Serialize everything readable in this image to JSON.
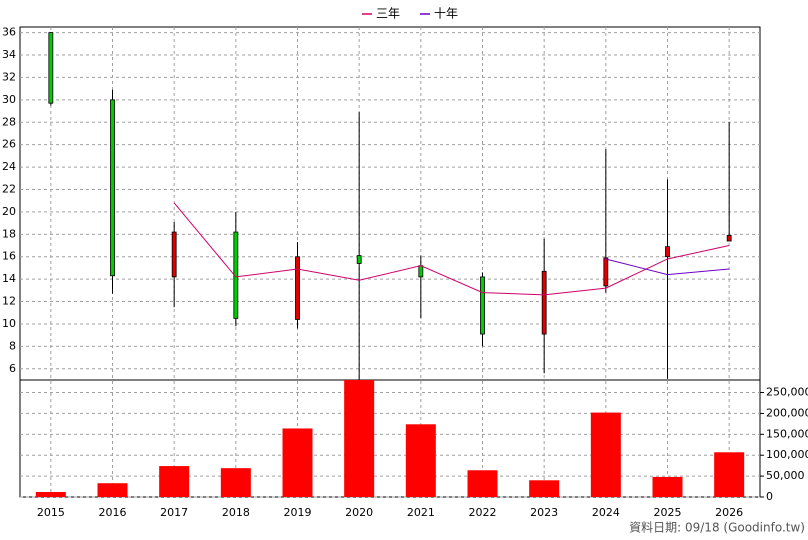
{
  "chart_data": {
    "type": "candlestick",
    "categories": [
      "2015",
      "2016",
      "2017",
      "2018",
      "2019",
      "2020",
      "2021",
      "2022",
      "2023",
      "2024",
      "2025",
      "2026"
    ],
    "open": [
      36,
      30,
      14.2,
      18.2,
      10.4,
      16.1,
      15.2,
      14.2,
      9.1,
      13.4,
      16.0,
      17.4
    ],
    "close": [
      29.7,
      14.3,
      18.2,
      10.5,
      16.0,
      15.4,
      14.2,
      9.1,
      14.7,
      15.9,
      16.9,
      17.9
    ],
    "high": [
      36,
      30.9,
      19.1,
      20.0,
      17.3,
      28.9,
      16.1,
      14.6,
      17.6,
      25.6,
      22.9,
      28.0
    ],
    "low": [
      29.5,
      12.7,
      11.5,
      9.8,
      9.6,
      5.0,
      10.5,
      8.0,
      5.6,
      12.8,
      5.1,
      17.4
    ],
    "up_color": "#e00000",
    "down_color": "#00cc00",
    "series": [
      {
        "name": "三年",
        "color": "#d0006a",
        "values": [
          null,
          null,
          20.8,
          14.2,
          14.9,
          13.9,
          15.2,
          12.8,
          12.6,
          13.2,
          15.8,
          17.0
        ]
      },
      {
        "name": "十年",
        "color": "#6a00c8",
        "values": [
          null,
          null,
          null,
          null,
          null,
          null,
          null,
          null,
          null,
          15.8,
          14.4,
          14.9
        ]
      }
    ],
    "ylim": [
      5,
      36.5
    ],
    "yticks": [
      6,
      8,
      10,
      12,
      14,
      16,
      18,
      20,
      22,
      24,
      26,
      28,
      30,
      32,
      34,
      36
    ],
    "grid": true,
    "volume": {
      "color": "#ff0000",
      "values": [
        12000,
        33000,
        74000,
        69000,
        164000,
        280000,
        174000,
        64000,
        40000,
        202000,
        48000,
        107000
      ],
      "ylim": [
        0,
        280000
      ],
      "yticks": [
        0,
        {
          "value": 50000,
          "label": "50,000"
        },
        {
          "value": 100000,
          "label": "100,000"
        },
        {
          "value": 150000,
          "label": "150,000"
        },
        {
          "value": 200000,
          "label": "200,000"
        },
        {
          "value": 250000,
          "label": "250,000"
        }
      ]
    },
    "footer": "資料日期: 09/18 (Goodinfo.tw)"
  }
}
